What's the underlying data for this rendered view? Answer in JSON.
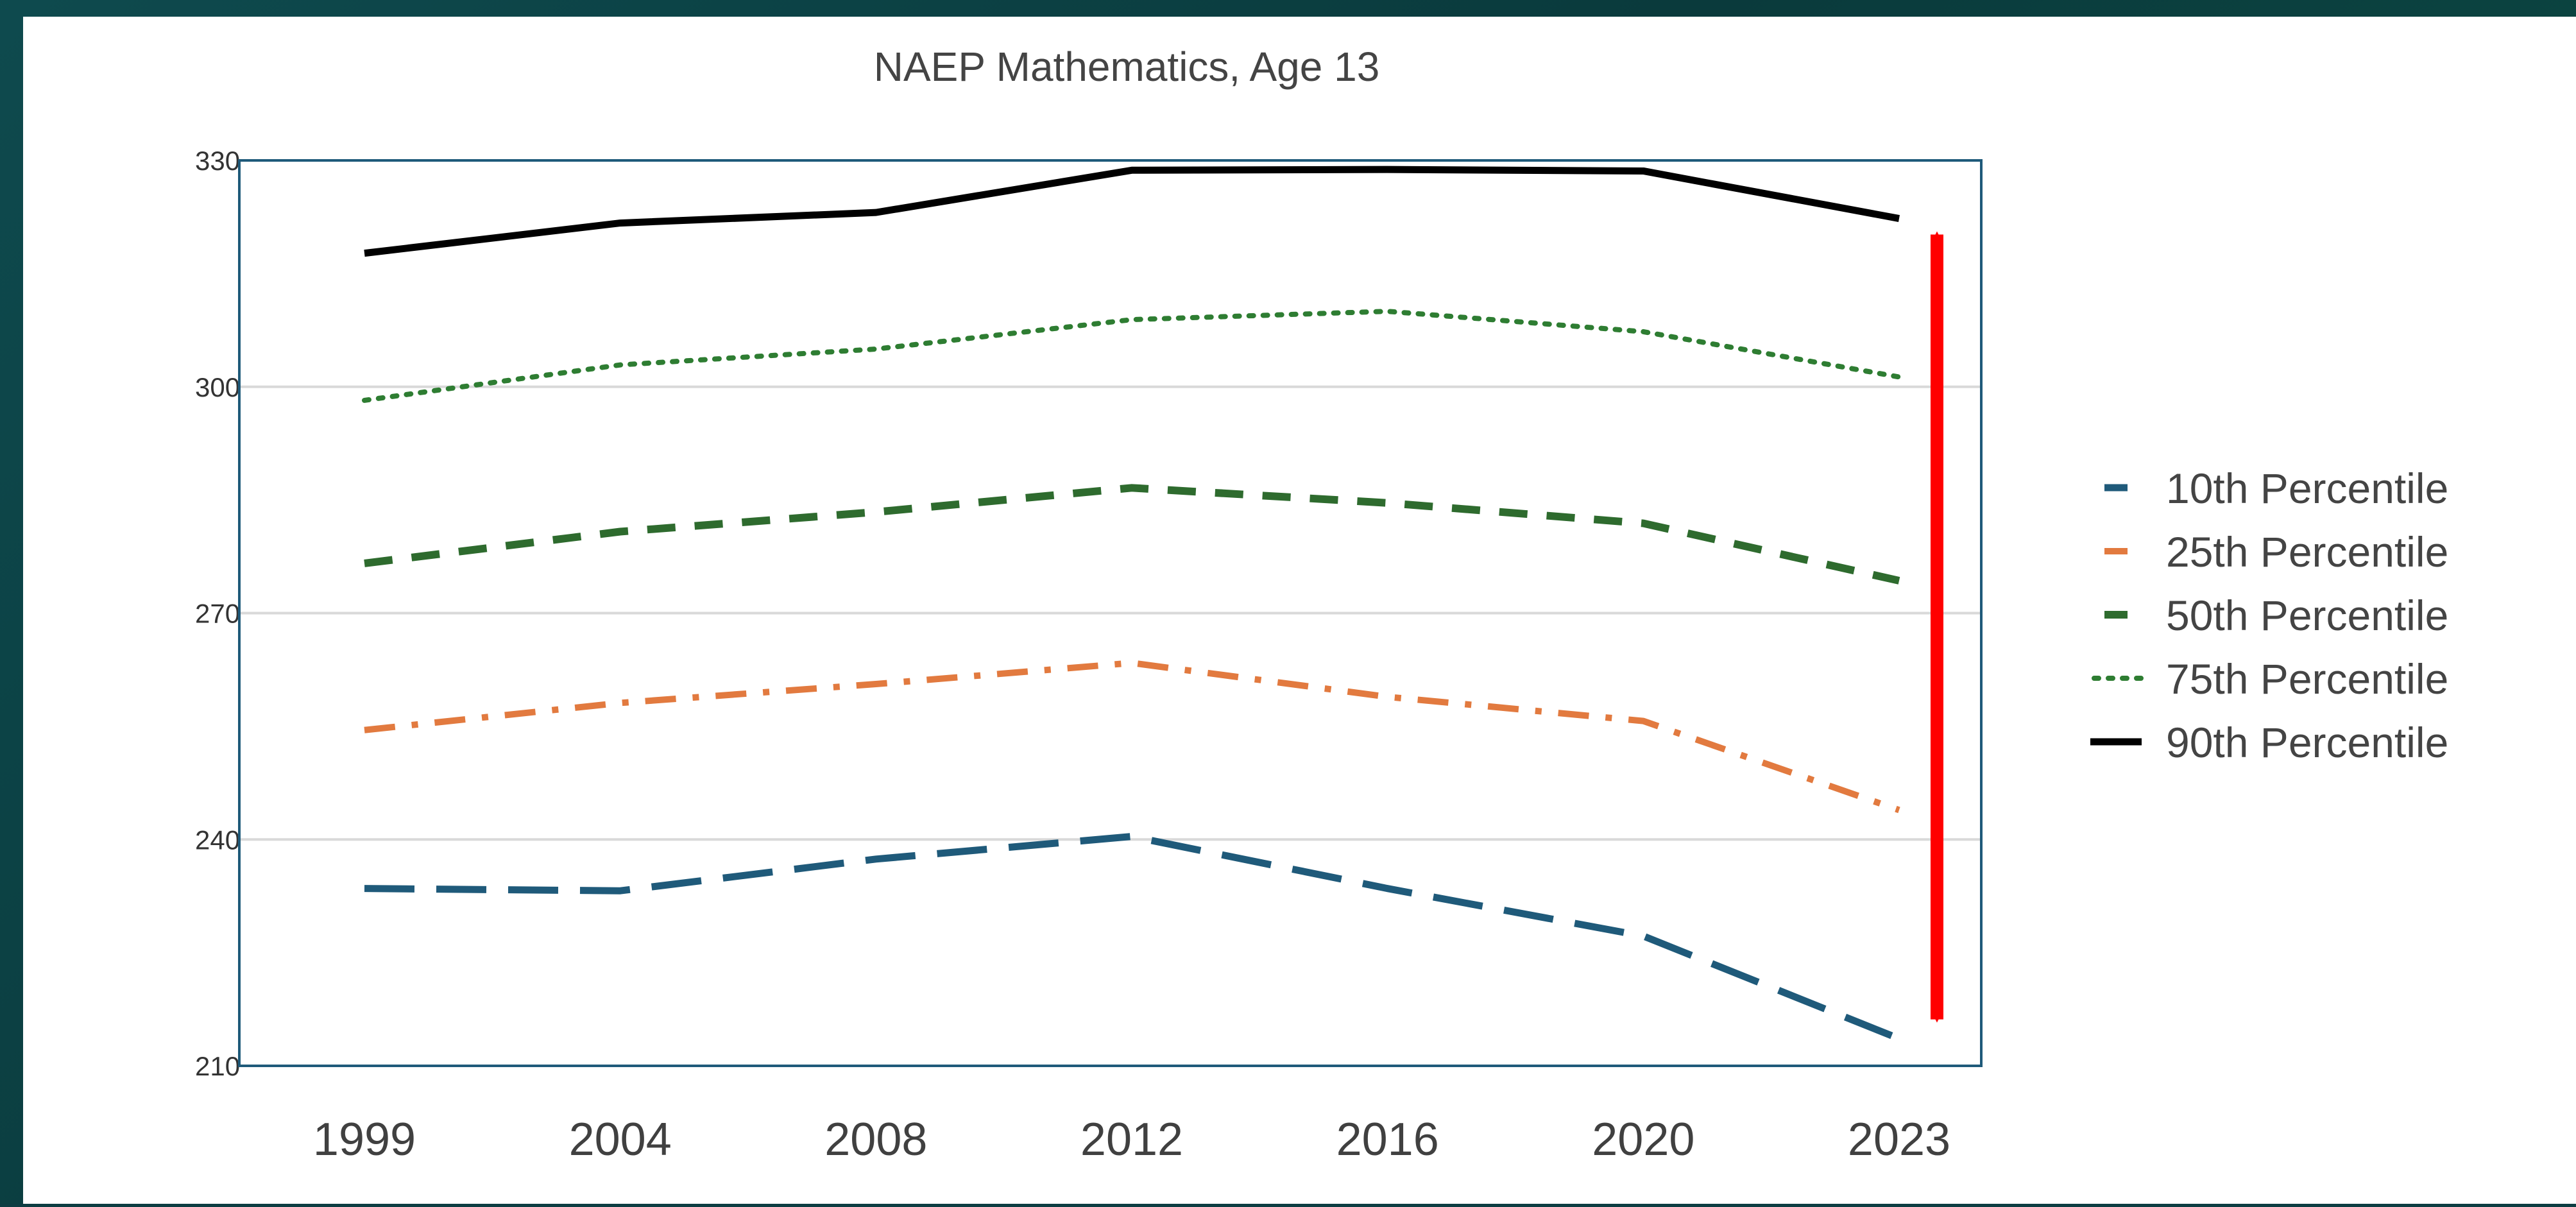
{
  "chart_data": {
    "type": "line",
    "title": "NAEP Mathematics, Age 13",
    "xlabel": "",
    "ylabel": "",
    "categories": [
      "1999",
      "2004",
      "2008",
      "2012",
      "2016",
      "2020",
      "2023"
    ],
    "ylim": [
      210,
      330
    ],
    "yticks": [
      210,
      240,
      270,
      300,
      330
    ],
    "grid": true,
    "legend_position": "right",
    "series": [
      {
        "name": "10th Percentile",
        "values": [
          233.5,
          233.2,
          237.4,
          240.4,
          233.5,
          227.2,
          213.6
        ],
        "color": "#1f5a7a",
        "style": "long-dash"
      },
      {
        "name": "25th Percentile",
        "values": [
          254.5,
          258.1,
          260.6,
          263.4,
          258.9,
          255.7,
          243.9
        ],
        "color": "#e27a3f",
        "style": "dash-dot"
      },
      {
        "name": "50th Percentile",
        "values": [
          276.6,
          280.8,
          283.4,
          286.6,
          284.6,
          281.9,
          274.3
        ],
        "color": "#2e6b2e",
        "style": "dash"
      },
      {
        "name": "75th Percentile",
        "values": [
          298.2,
          302.9,
          305.0,
          308.9,
          310.0,
          307.3,
          301.3
        ],
        "color": "#2e7d32",
        "style": "dot"
      },
      {
        "name": "90th Percentile",
        "values": [
          317.7,
          321.7,
          323.1,
          328.7,
          328.8,
          328.6,
          322.3
        ],
        "color": "#000000",
        "style": "solid"
      }
    ],
    "annotation": {
      "type": "double-arrow",
      "color": "#ff0000",
      "x_category": "2023",
      "y_from": 213.6,
      "y_to": 322.3
    }
  }
}
